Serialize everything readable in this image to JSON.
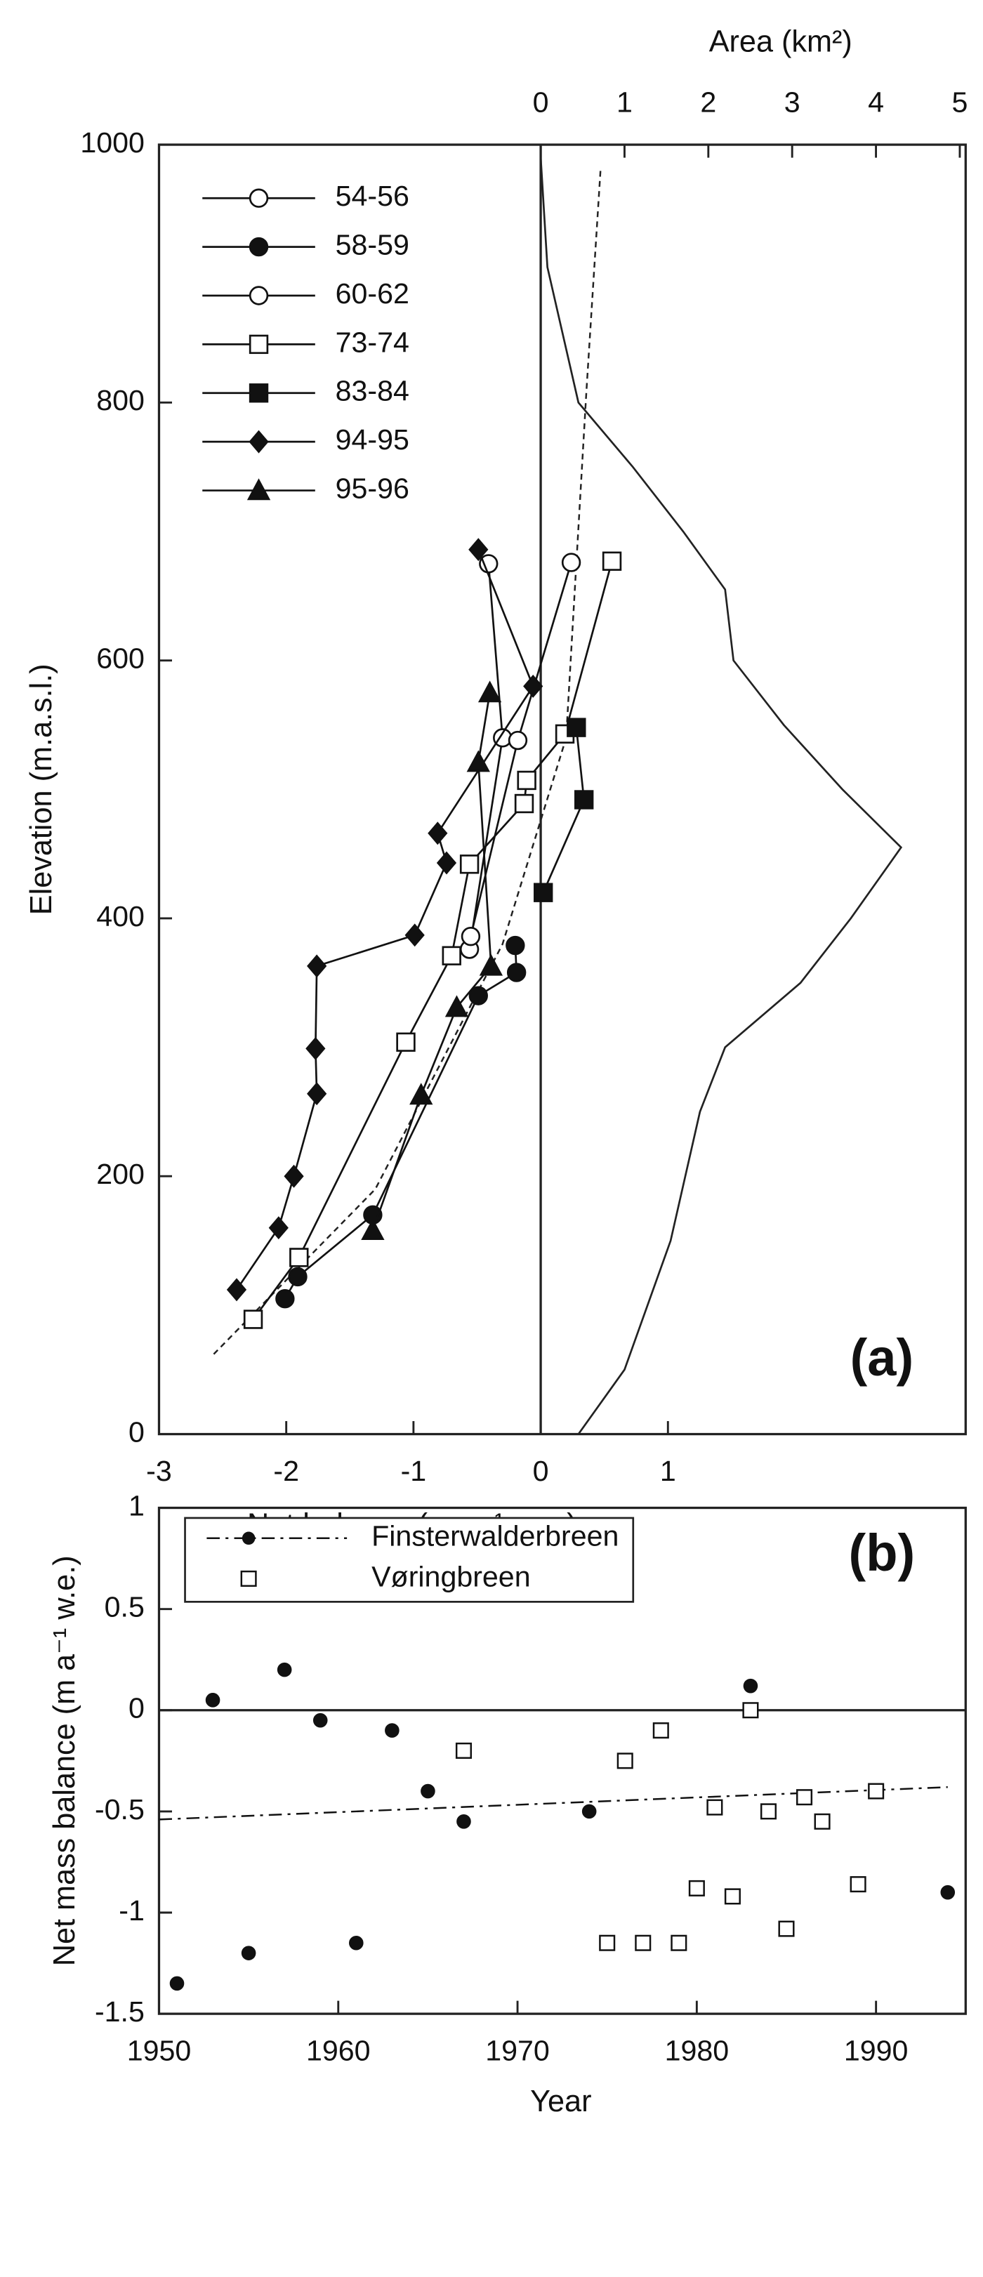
{
  "chart_data": [
    {
      "type": "line",
      "annotation": "(a)",
      "x_label": "Net balance (m a⁻¹ w.e.)",
      "x2_label": "Area (km²)",
      "y_label": "Elevation (m.a.s.l.)",
      "xlim": [
        -3,
        3.34
      ],
      "xticks": [
        -3,
        -2,
        -1,
        0,
        1
      ],
      "x2lim": [
        0,
        5.07
      ],
      "x2ticks": [
        0,
        1,
        2,
        3,
        4,
        5
      ],
      "ylim": [
        0,
        1000
      ],
      "yticks": [
        0,
        200,
        400,
        600,
        800,
        1000
      ],
      "series": [
        {
          "name": "54-56",
          "marker": "open-circle",
          "color": "#111",
          "x": [
            -0.41,
            -0.3,
            -0.56
          ],
          "y": [
            675,
            540,
            376
          ]
        },
        {
          "name": "58-59",
          "marker": "filled-circle",
          "color": "#111",
          "x": [
            -2.01,
            -1.91,
            -1.32,
            -0.49,
            -0.19,
            -0.2
          ],
          "y": [
            105,
            122,
            170,
            340,
            358,
            379
          ]
        },
        {
          "name": "60-62",
          "marker": "open-circle",
          "color": "#111",
          "x": [
            0.24,
            -0.18,
            -0.55
          ],
          "y": [
            676,
            538,
            386
          ]
        },
        {
          "name": "73-74",
          "marker": "open-square",
          "color": "#111",
          "x": [
            -2.26,
            -1.9,
            -1.06,
            -0.7,
            -0.56,
            -0.13,
            -0.11,
            0.19,
            0.56
          ],
          "y": [
            89,
            137,
            304,
            371,
            442,
            489,
            507,
            543,
            677
          ]
        },
        {
          "name": "83-84",
          "marker": "filled-square",
          "color": "#111",
          "x": [
            0.02,
            0.34,
            0.28
          ],
          "y": [
            420,
            492,
            548
          ]
        },
        {
          "name": "94-95",
          "marker": "diamond",
          "color": "#111",
          "x": [
            -2.39,
            -2.06,
            -1.94,
            -1.76,
            -1.77,
            -1.76,
            -0.99,
            -0.74,
            -0.81,
            -0.06,
            -0.49
          ],
          "y": [
            112,
            160,
            200,
            264,
            299,
            363,
            387,
            443,
            466,
            580,
            686
          ]
        },
        {
          "name": "95-96",
          "marker": "triangle",
          "color": "#111",
          "x": [
            -1.32,
            -0.94,
            -0.66,
            -0.39,
            -0.49,
            -0.4
          ],
          "y": [
            158,
            263,
            331,
            363,
            521,
            575
          ]
        }
      ],
      "trend": {
        "x": [
          -2.57,
          -1.3,
          -0.3,
          0.2,
          0.36,
          0.47
        ],
        "y": [
          62,
          190,
          380,
          540,
          810,
          980
        ]
      },
      "area": {
        "axis": "x2",
        "x": [
          0,
          0.08,
          0.45,
          1.1,
          1.7,
          2.2,
          2.3,
          2.9,
          3.6,
          4.3,
          3.7,
          3.1,
          2.2,
          1.9,
          1.55,
          1.0,
          0.45
        ],
        "y": [
          990,
          905,
          800,
          750,
          700,
          655,
          600,
          550,
          500,
          455,
          400,
          350,
          300,
          250,
          150,
          50,
          0
        ]
      }
    },
    {
      "type": "scatter",
      "annotation": "(b)",
      "x_label": "Year",
      "y_label": "Net mass balance (m a⁻¹ w.e.)",
      "xlim": [
        1950,
        1995
      ],
      "xticks": [
        1950,
        1960,
        1970,
        1980,
        1990
      ],
      "ylim": [
        -1.5,
        1
      ],
      "yticks": [
        1,
        0.5,
        0,
        -0.5,
        -1,
        -1.5
      ],
      "series": [
        {
          "name": "Finsterwalderbreen",
          "marker": "filled-circle",
          "color": "#111",
          "x": [
            1951,
            1953,
            1955,
            1957,
            1959,
            1961,
            1963,
            1965,
            1967,
            1974,
            1983,
            1994
          ],
          "y": [
            -1.35,
            0.05,
            -1.2,
            0.2,
            -0.05,
            -1.15,
            -0.1,
            -0.4,
            -0.55,
            -0.5,
            0.12,
            -0.9
          ],
          "trend": {
            "x": [
              1950,
              1994
            ],
            "y": [
              -0.54,
              -0.38
            ]
          }
        },
        {
          "name": "Vøringbreen",
          "marker": "open-square",
          "color": "#111",
          "x": [
            1967,
            1975,
            1976,
            1977,
            1978,
            1979,
            1980,
            1981,
            1982,
            1983,
            1984,
            1985,
            1986,
            1987,
            1989,
            1990
          ],
          "y": [
            -0.2,
            -1.15,
            -0.25,
            -1.15,
            -0.1,
            -1.15,
            -0.88,
            -0.48,
            -0.92,
            0.0,
            -0.5,
            -1.08,
            -0.43,
            -0.55,
            -0.86,
            -0.4
          ]
        }
      ]
    }
  ]
}
